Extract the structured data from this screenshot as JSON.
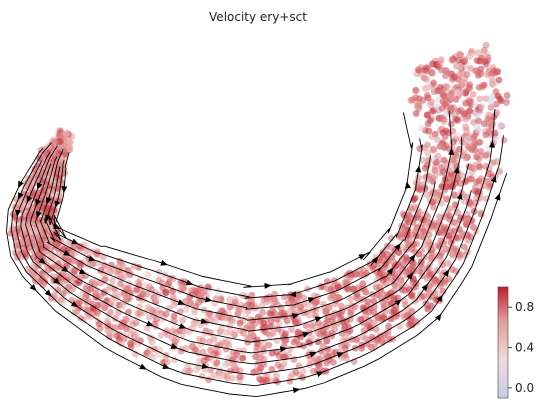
{
  "chart_data": {
    "type": "scatter",
    "title": "Velocity ery+sct",
    "xlabel": "",
    "ylabel": "",
    "colormap": [
      "#c8cde8",
      "#f0dada",
      "#e39a99",
      "#c01f2e"
    ],
    "colorbar": {
      "range": [
        -0.1,
        1.0
      ],
      "ticks": [
        "0.0",
        "0.4",
        "0.8"
      ],
      "tick_values": [
        0.0,
        0.4,
        0.8
      ]
    },
    "overlay": "velocity streamlines with arrowheads",
    "embedding_shape": "curved band from upper-left tip, along bottom, up to top-right blob",
    "grid": false,
    "axes_visible": false,
    "legend": "none"
  }
}
